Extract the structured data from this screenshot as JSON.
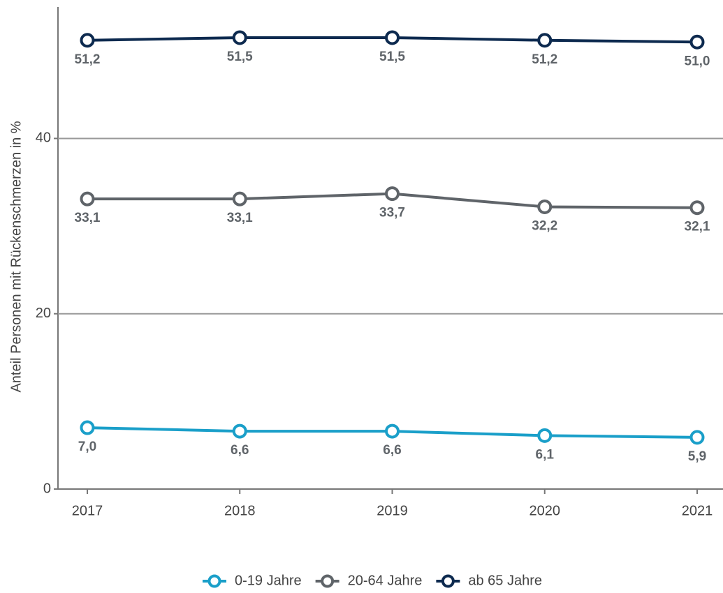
{
  "chart_data": {
    "type": "line",
    "y_label": "Anteil Personen mit Rückenschmerzen in %",
    "categories": [
      "2017",
      "2018",
      "2019",
      "2020",
      "2021"
    ],
    "series": [
      {
        "name": "0-19 Jahre",
        "color": "#1a9fc9",
        "values": [
          7.0,
          6.6,
          6.6,
          6.1,
          5.9
        ],
        "value_labels": [
          "7,0",
          "6,6",
          "6,6",
          "6,1",
          "5,9"
        ]
      },
      {
        "name": "20-64 Jahre",
        "color": "#5f6469",
        "values": [
          33.1,
          33.1,
          33.7,
          32.2,
          32.1
        ],
        "value_labels": [
          "33,1",
          "33,1",
          "33,7",
          "32,2",
          "32,1"
        ]
      },
      {
        "name": "ab 65 Jahre",
        "color": "#0d2a4f",
        "values": [
          51.2,
          51.5,
          51.5,
          51.2,
          51.0
        ],
        "value_labels": [
          "51,2",
          "51,5",
          "51,5",
          "51,2",
          "51,0"
        ]
      }
    ],
    "ylim": [
      0,
      55
    ],
    "yticks": [
      0,
      20,
      40
    ],
    "grid": true,
    "legend": "bottom"
  }
}
